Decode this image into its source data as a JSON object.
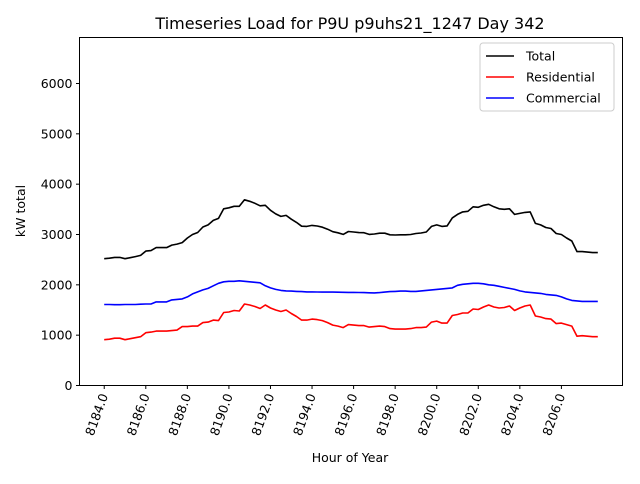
{
  "chart_data": {
    "type": "line",
    "title": "Timeseries Load for P9U p9uhs21_1247  Day 342",
    "xlabel": "Hour of Year",
    "ylabel": "kW total",
    "xlim": [
      8182.81,
      8208.94
    ],
    "ylim": [
      0,
      6914
    ],
    "xticks": [
      8184,
      8186,
      8188,
      8190,
      8192,
      8194,
      8196,
      8198,
      8200,
      8202,
      8204,
      8206
    ],
    "xtick_labels": [
      "8184.0",
      "8186.0",
      "8188.0",
      "8190.0",
      "8192.0",
      "8194.0",
      "8196.0",
      "8198.0",
      "8200.0",
      "8202.0",
      "8204.0",
      "8206.0"
    ],
    "yticks": [
      0,
      1000,
      2000,
      3000,
      4000,
      5000,
      6000
    ],
    "ytick_labels": [
      "0",
      "1000",
      "2000",
      "3000",
      "4000",
      "5000",
      "6000"
    ],
    "grid": false,
    "legend_position": "top-right",
    "x_start": 8184,
    "x_step": 0.25,
    "series": [
      {
        "name": "Total",
        "color": "#000000",
        "values": [
          2520,
          2530,
          2545,
          2545,
          2520,
          2540,
          2560,
          2585,
          2670,
          2680,
          2740,
          2740,
          2740,
          2790,
          2810,
          2840,
          2930,
          3000,
          3040,
          3150,
          3190,
          3280,
          3320,
          3510,
          3530,
          3560,
          3560,
          3690,
          3660,
          3620,
          3570,
          3580,
          3480,
          3410,
          3360,
          3380,
          3305,
          3240,
          3165,
          3160,
          3180,
          3168,
          3146,
          3105,
          3055,
          3033,
          3002,
          3060,
          3050,
          3038,
          3035,
          3002,
          3010,
          3025,
          3025,
          2995,
          2990,
          2995,
          2995,
          3000,
          3020,
          3030,
          3050,
          3160,
          3190,
          3160,
          3170,
          3330,
          3400,
          3450,
          3460,
          3550,
          3540,
          3580,
          3600,
          3550,
          3510,
          3500,
          3510,
          3400,
          3420,
          3440,
          3450,
          3220,
          3190,
          3140,
          3120,
          3020,
          3000,
          2930,
          2870,
          2660,
          2660,
          2650,
          2640,
          2640
        ]
      },
      {
        "name": "Residential",
        "color": "#ff0000",
        "values": [
          910,
          920,
          940,
          940,
          910,
          930,
          950,
          970,
          1050,
          1060,
          1080,
          1080,
          1080,
          1090,
          1100,
          1170,
          1170,
          1180,
          1180,
          1250,
          1260,
          1300,
          1290,
          1450,
          1460,
          1490,
          1480,
          1620,
          1600,
          1570,
          1530,
          1600,
          1540,
          1500,
          1470,
          1500,
          1430,
          1370,
          1300,
          1300,
          1320,
          1310,
          1290,
          1250,
          1200,
          1180,
          1150,
          1210,
          1200,
          1190,
          1190,
          1160,
          1170,
          1180,
          1170,
          1130,
          1120,
          1120,
          1120,
          1130,
          1150,
          1150,
          1160,
          1260,
          1280,
          1240,
          1240,
          1390,
          1410,
          1440,
          1440,
          1520,
          1510,
          1560,
          1600,
          1560,
          1540,
          1550,
          1580,
          1490,
          1540,
          1580,
          1600,
          1380,
          1360,
          1330,
          1320,
          1230,
          1240,
          1210,
          1180,
          980,
          990,
          980,
          970,
          970
        ]
      },
      {
        "name": "Commercial",
        "color": "#0000ff",
        "values": [
          1610,
          1610,
          1605,
          1605,
          1610,
          1610,
          1610,
          1615,
          1620,
          1620,
          1660,
          1660,
          1660,
          1700,
          1710,
          1720,
          1760,
          1820,
          1860,
          1900,
          1930,
          1980,
          2030,
          2060,
          2070,
          2070,
          2080,
          2070,
          2060,
          2050,
          2040,
          1980,
          1940,
          1910,
          1890,
          1880,
          1875,
          1870,
          1865,
          1860,
          1860,
          1858,
          1856,
          1855,
          1855,
          1853,
          1852,
          1850,
          1850,
          1848,
          1845,
          1842,
          1840,
          1845,
          1855,
          1865,
          1870,
          1875,
          1875,
          1870,
          1870,
          1880,
          1890,
          1900,
          1910,
          1920,
          1930,
          1940,
          1990,
          2010,
          2020,
          2030,
          2030,
          2020,
          2000,
          1990,
          1970,
          1950,
          1930,
          1910,
          1880,
          1860,
          1850,
          1840,
          1830,
          1810,
          1800,
          1790,
          1760,
          1720,
          1690,
          1680,
          1670,
          1670,
          1670,
          1670
        ]
      }
    ]
  }
}
